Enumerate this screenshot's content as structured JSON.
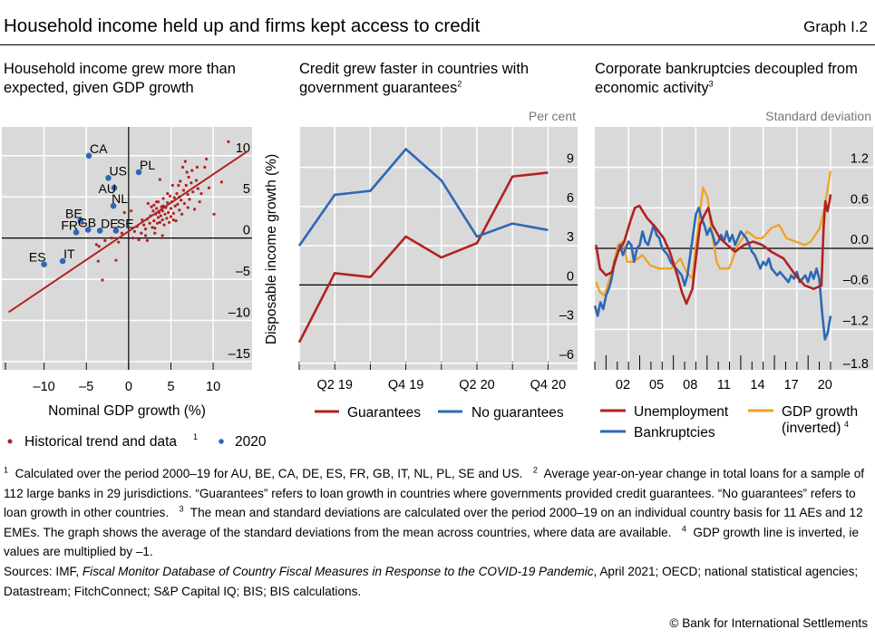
{
  "header": {
    "title": "Household income held up and firms kept access to credit",
    "graph_id": "Graph I.2"
  },
  "colors": {
    "red": "#b22222",
    "blue": "#2e68b5",
    "orange": "#f0a020",
    "plot_bg": "#d9d9d9",
    "grid": "#ffffff"
  },
  "chart_data": [
    {
      "type": "scatter",
      "title": "Household income grew more than expected, given GDP growth",
      "xlabel": "Nominal GDP growth (%)",
      "ylabel": "",
      "xlim": [
        -15,
        14.6
      ],
      "ylim": [
        -16,
        13.5
      ],
      "xticks": [
        -10,
        -5,
        0,
        5,
        10
      ],
      "yticks": [
        -15,
        -10,
        -5,
        0,
        5,
        10
      ],
      "grid": true,
      "legend": [
        {
          "label": "Historical trend and data",
          "sup": "1"
        },
        {
          "label": "2020"
        }
      ],
      "trend_line": [
        [
          -14.2,
          -9
        ],
        [
          14,
          10.5
        ]
      ],
      "historical_points": [
        [
          -5.5,
          1.8
        ],
        [
          -3.8,
          -0.8
        ],
        [
          -3.6,
          -2.8
        ],
        [
          -3.1,
          -5.1
        ],
        [
          -3.5,
          -1
        ],
        [
          -2.8,
          -0.3
        ],
        [
          -2,
          0
        ],
        [
          -1.5,
          -2.7
        ],
        [
          -1.2,
          -0.5
        ],
        [
          -0.8,
          0.6
        ],
        [
          -0.5,
          3.1
        ],
        [
          0.3,
          3.3
        ],
        [
          0.5,
          0
        ],
        [
          0.7,
          0.8
        ],
        [
          1,
          1.4
        ],
        [
          1.2,
          -0.2
        ],
        [
          1.5,
          0.6
        ],
        [
          1.6,
          2.2
        ],
        [
          2,
          1.1
        ],
        [
          2,
          0.3
        ],
        [
          2.2,
          -0.3
        ],
        [
          2.3,
          4.2
        ],
        [
          2.5,
          1.8
        ],
        [
          2.6,
          2.7
        ],
        [
          2.8,
          1.3
        ],
        [
          2.9,
          3.3
        ],
        [
          3,
          2.1
        ],
        [
          3,
          4
        ],
        [
          3.1,
          0.6
        ],
        [
          3.2,
          2.9
        ],
        [
          3.3,
          3.6
        ],
        [
          3.4,
          1.8
        ],
        [
          3.5,
          2.5
        ],
        [
          3.5,
          4.4
        ],
        [
          3.6,
          3.1
        ],
        [
          3.7,
          1.9
        ],
        [
          3.7,
          7.1
        ],
        [
          3.8,
          2.7
        ],
        [
          3.9,
          3.8
        ],
        [
          4,
          0.3
        ],
        [
          4,
          2.2
        ],
        [
          4,
          3.3
        ],
        [
          4.1,
          4.8
        ],
        [
          4.2,
          1.6
        ],
        [
          4.3,
          2.9
        ],
        [
          4.4,
          3.7
        ],
        [
          4.5,
          2.4
        ],
        [
          4.6,
          4.3
        ],
        [
          4.7,
          3.1
        ],
        [
          4.8,
          1.9
        ],
        [
          4.9,
          5.1
        ],
        [
          5,
          3.6
        ],
        [
          5,
          2.6
        ],
        [
          5.1,
          4.4
        ],
        [
          5.2,
          6.4
        ],
        [
          5.3,
          3
        ],
        [
          5.4,
          4.9
        ],
        [
          5.5,
          3.9
        ],
        [
          5.6,
          2.1
        ],
        [
          5.7,
          5.4
        ],
        [
          5.8,
          4.1
        ],
        [
          5.9,
          6.4
        ],
        [
          6,
          3.4
        ],
        [
          6,
          5
        ],
        [
          6.2,
          4.6
        ],
        [
          6.3,
          2.9
        ],
        [
          6.4,
          8.6
        ],
        [
          6.5,
          5.8
        ],
        [
          6.6,
          4.2
        ],
        [
          6.7,
          9.3
        ],
        [
          6.8,
          6.4
        ],
        [
          7,
          3.7
        ],
        [
          7,
          5.3
        ],
        [
          7.1,
          7.4
        ],
        [
          7.2,
          4.7
        ],
        [
          7.4,
          6.7
        ],
        [
          7.5,
          8.2
        ],
        [
          7.6,
          5.6
        ],
        [
          7.8,
          3.5
        ],
        [
          8,
          7
        ],
        [
          8.2,
          6
        ],
        [
          8.4,
          4.4
        ],
        [
          8.6,
          5.4
        ],
        [
          9,
          8.6
        ],
        [
          9.2,
          9.6
        ],
        [
          9.5,
          6.1
        ],
        [
          10.1,
          2.9
        ],
        [
          11,
          6.8
        ],
        [
          11.8,
          11.7
        ],
        [
          2.7,
          3.8
        ],
        [
          3.3,
          4.4
        ],
        [
          4.1,
          3.9
        ],
        [
          4.6,
          5.4
        ],
        [
          3.1,
          1.2
        ],
        [
          2.2,
          2.3
        ],
        [
          1.8,
          1.6
        ],
        [
          5.3,
          2.2
        ],
        [
          6.1,
          6.9
        ],
        [
          6.9,
          8
        ],
        [
          8.1,
          8.6
        ]
      ],
      "points_2020": [
        {
          "label": "CA",
          "x": -4.7,
          "y": 10
        },
        {
          "label": "US",
          "x": -2.4,
          "y": 7.3
        },
        {
          "label": "PL",
          "x": 1.2,
          "y": 8
        },
        {
          "label": "AU",
          "x": -1.7,
          "y": 6.1
        },
        {
          "label": "NL",
          "x": -1.8,
          "y": 3.9
        },
        {
          "label": "BE",
          "x": -5.7,
          "y": 2.1
        },
        {
          "label": "GB",
          "x": -4.8,
          "y": 1
        },
        {
          "label": "DE",
          "x": -3.4,
          "y": 0.9
        },
        {
          "label": "SE",
          "x": -1.5,
          "y": 0.9
        },
        {
          "label": "FR",
          "x": -6.2,
          "y": 0.7
        },
        {
          "label": "ES",
          "x": -10,
          "y": -3.2
        },
        {
          "label": "IT",
          "x": -7.8,
          "y": -2.8
        }
      ]
    },
    {
      "type": "line",
      "title": "Credit grew faster in countries with government guarantees",
      "title_sup": "2",
      "unit": "Per cent",
      "ylabel": "Disposable income growth (%)",
      "categories": [
        "Q1 19",
        "Q2 19",
        "Q3 19",
        "Q4 19",
        "Q1 20",
        "Q2 20",
        "Q3 20",
        "Q4 20"
      ],
      "xtick_labels": [
        "Q2 19",
        "Q4 19",
        "Q2 20",
        "Q4 20"
      ],
      "ylim": [
        -6.5,
        12.1
      ],
      "yticks": [
        -6,
        -3,
        0,
        3,
        6,
        9
      ],
      "grid": true,
      "legend_position": "bottom",
      "series": [
        {
          "name": "Guarantees",
          "color": "#b22222",
          "values": [
            -4.4,
            0.9,
            0.6,
            3.7,
            2.1,
            3.2,
            8.3,
            8.6
          ]
        },
        {
          "name": "No guarantees",
          "color": "#2e68b5",
          "values": [
            3,
            6.9,
            7.2,
            10.4,
            8,
            3.7,
            4.7,
            4.2
          ]
        }
      ]
    },
    {
      "type": "line",
      "title": "Corporate bankruptcies decoupled from economic activity",
      "title_sup": "3",
      "unit": "Standard deviation",
      "xlim": [
        2000,
        2024.8
      ],
      "ylim": [
        -1.8,
        1.8
      ],
      "yticks": [
        "-1.8",
        "-1.2",
        "-0.6",
        "0.0",
        "0.6",
        "1.2"
      ],
      "xtick_labels": [
        "02",
        "05",
        "08",
        "11",
        "14",
        "17",
        "20"
      ],
      "grid": true,
      "legend_position": "bottom",
      "series": [
        {
          "name": "Unemployment",
          "color": "#b22222",
          "x": [
            2000.11,
            2000.46,
            2001,
            2001.54,
            2002.08,
            2002.62,
            2003.16,
            2003.57,
            2003.97,
            2004.65,
            2005.46,
            2006.14,
            2006.68,
            2007.35,
            2007.76,
            2008.16,
            2008.7,
            2008.97,
            2009.38,
            2009.78,
            2010.11,
            2010.46,
            2011.14,
            2011.81,
            2012.49,
            2013.3,
            2014.11,
            2014.92,
            2015.73,
            2016.81,
            2017.89,
            2018.7,
            2019.51,
            2020.19,
            2020.38,
            2020.54,
            2020.73,
            2020.92,
            2021
          ],
          "values": [
            0.05,
            -0.3,
            -0.4,
            -0.35,
            -0.05,
            0.1,
            0.4,
            0.6,
            0.63,
            0.45,
            0.3,
            0.15,
            -0.05,
            -0.4,
            -0.65,
            -0.82,
            -0.6,
            -0.2,
            0.35,
            0.5,
            0.6,
            0.35,
            0.15,
            0.05,
            -0.05,
            0.05,
            0.1,
            0.05,
            -0.05,
            -0.15,
            -0.4,
            -0.55,
            -0.6,
            -0.55,
            0.3,
            0.7,
            0.55,
            0.7,
            0.8
          ]
        },
        {
          "name": "GDP growth",
          "name_line2": "(inverted)",
          "name_sup": "4",
          "color": "#f0a020",
          "x": [
            2000.11,
            2000.46,
            2000.86,
            2001.41,
            2002.08,
            2002.49,
            2002.89,
            2003.43,
            2004.24,
            2004.92,
            2005.73,
            2006.81,
            2007.62,
            2008.16,
            2008.7,
            2009.11,
            2009.65,
            2010.05,
            2010.46,
            2010.86,
            2011.14,
            2011.95,
            2012.76,
            2013.57,
            2014.38,
            2014.92,
            2015.73,
            2016.41,
            2017.08,
            2017.89,
            2018.7,
            2019.24,
            2020.05,
            2020.46,
            2020.86,
            2021
          ],
          "values": [
            -0.5,
            -0.65,
            -0.7,
            -0.4,
            0.05,
            0.1,
            -0.2,
            -0.2,
            -0.1,
            -0.25,
            -0.3,
            -0.3,
            -0.15,
            -0.35,
            -0.45,
            0.2,
            0.9,
            0.75,
            0.2,
            -0.2,
            -0.3,
            -0.3,
            0.05,
            0.25,
            0.15,
            0.15,
            0.3,
            0.35,
            0.15,
            0.1,
            0.05,
            0.1,
            0.3,
            0.6,
            1.0,
            1.15
          ]
        },
        {
          "name": "Bankruptcies",
          "color": "#2e68b5",
          "x": [
            2000,
            2000.25,
            2000.5,
            2000.75,
            2001,
            2001.25,
            2001.5,
            2001.75,
            2002,
            2002.25,
            2002.5,
            2002.75,
            2003,
            2003.25,
            2003.5,
            2003.75,
            2004,
            2004.25,
            2004.5,
            2004.75,
            2005,
            2005.25,
            2005.5,
            2005.75,
            2006,
            2006.25,
            2006.5,
            2006.75,
            2007,
            2007.25,
            2007.5,
            2007.75,
            2008,
            2008.25,
            2008.5,
            2008.75,
            2009,
            2009.25,
            2009.5,
            2009.75,
            2010,
            2010.25,
            2010.5,
            2010.75,
            2011,
            2011.25,
            2011.5,
            2011.75,
            2012,
            2012.25,
            2012.5,
            2012.75,
            2013,
            2013.25,
            2013.5,
            2013.75,
            2014,
            2014.25,
            2014.5,
            2014.75,
            2015,
            2015.25,
            2015.5,
            2015.75,
            2016,
            2016.25,
            2016.5,
            2016.75,
            2017,
            2017.25,
            2017.5,
            2017.75,
            2018,
            2018.25,
            2018.5,
            2018.75,
            2019,
            2019.25,
            2019.5,
            2019.75,
            2020,
            2020.25,
            2020.5,
            2020.75,
            2021
          ],
          "values": [
            -0.85,
            -1.0,
            -0.8,
            -0.9,
            -0.7,
            -0.6,
            -0.45,
            -0.2,
            -0.1,
            0.05,
            -0.1,
            0.0,
            0.1,
            0.05,
            -0.2,
            0.0,
            0.05,
            0.25,
            0.1,
            0.05,
            0.2,
            0.35,
            0.2,
            0.15,
            0.0,
            -0.05,
            -0.1,
            -0.2,
            -0.25,
            -0.3,
            -0.35,
            -0.4,
            -0.55,
            -0.4,
            -0.1,
            0.2,
            0.5,
            0.6,
            0.45,
            0.35,
            0.2,
            0.3,
            0.2,
            0.05,
            0.1,
            0.2,
            0.1,
            0.25,
            0.1,
            0.2,
            0.05,
            0.15,
            0.25,
            0.2,
            0.15,
            0.05,
            -0.05,
            -0.1,
            -0.2,
            -0.3,
            -0.2,
            -0.25,
            -0.15,
            -0.3,
            -0.35,
            -0.4,
            -0.35,
            -0.4,
            -0.45,
            -0.5,
            -0.4,
            -0.45,
            -0.35,
            -0.5,
            -0.45,
            -0.4,
            -0.5,
            -0.35,
            -0.45,
            -0.3,
            -0.45,
            -0.95,
            -1.35,
            -1.25,
            -1.0
          ]
        }
      ]
    }
  ],
  "footnotes": {
    "n1": "Calculated over the period 2000–19 for AU, BE, CA, DE, ES, FR, GB, IT, NL, PL, SE and US.",
    "n2": "Average year-on-year change in total loans for a sample of 112 large banks in 29 jurisdictions. “Guarantees” refers to loan growth in countries where governments provided credit guarantees. “No guarantees” refers to loan growth in other countries.",
    "n3": "The mean and standard deviations are calculated over the period 2000–19 on an individual country basis for 11 AEs and 12 EMEs. The graph shows the average of the standard deviations from the mean across countries, where data are available.",
    "n4": "GDP growth line is inverted, ie values are multiplied by –1."
  },
  "sources": {
    "prefix": "Sources: IMF, ",
    "italic": "Fiscal Monitor Database of Country Fiscal Measures in Response to the COVID-19 Pandemic",
    "suffix": ", April 2021; OECD; national statistical agencies; Datastream; FitchConnect; S&P Capital IQ; BIS; BIS calculations."
  },
  "copyright": "© Bank for International Settlements"
}
